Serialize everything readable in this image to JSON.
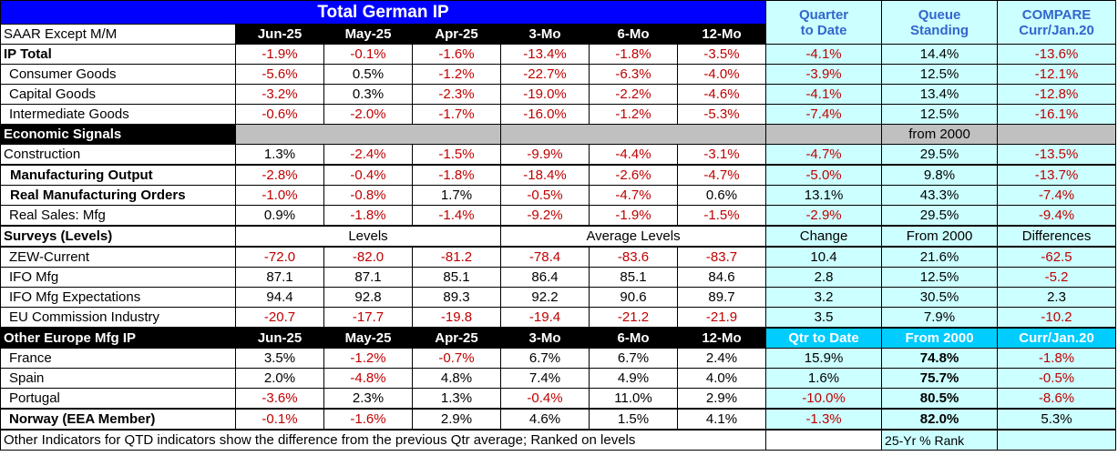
{
  "title": "Total German IP",
  "header": {
    "qtd": [
      "Quarter",
      "to Date"
    ],
    "queue": [
      "Queue",
      "Standing"
    ],
    "compare": [
      "COMPARE",
      "Curr/Jan.20"
    ],
    "saar": "SAAR Except M/M",
    "cols": [
      "Jun-25",
      "May-25",
      "Apr-25",
      "3-Mo",
      "6-Mo",
      "12-Mo"
    ]
  },
  "ip_rows": [
    {
      "label": "IP Total",
      "vals": [
        "-1.9%",
        "-0.1%",
        "-1.6%",
        "-13.4%",
        "-1.8%",
        "-3.5%"
      ],
      "qtd": "-4.1%",
      "queue": "14.4%",
      "compare": "-13.6%"
    },
    {
      "label": "Consumer Goods",
      "vals": [
        "-5.6%",
        "0.5%",
        "-1.2%",
        "-22.7%",
        "-6.3%",
        "-4.0%"
      ],
      "qtd": "-3.9%",
      "queue": "12.5%",
      "compare": "-12.1%"
    },
    {
      "label": "Capital Goods",
      "vals": [
        "-3.2%",
        "0.3%",
        "-2.3%",
        "-19.0%",
        "-2.2%",
        "-4.6%"
      ],
      "qtd": "-4.1%",
      "queue": "13.4%",
      "compare": "-12.8%"
    },
    {
      "label": "Intermediate Goods",
      "vals": [
        "-0.6%",
        "-2.0%",
        "-1.7%",
        "-16.0%",
        "-1.2%",
        "-5.3%"
      ],
      "qtd": "-7.4%",
      "queue": "12.5%",
      "compare": "-16.1%"
    }
  ],
  "econ": {
    "label": "Economic Signals",
    "queue": "from 2000"
  },
  "construction": {
    "label": "Construction",
    "vals": [
      "1.3%",
      "-2.4%",
      "-1.5%",
      "-9.9%",
      "-4.4%",
      "-3.1%"
    ],
    "qtd": "-4.7%",
    "queue": "29.5%",
    "compare": "-13.5%"
  },
  "mfg_rows": [
    {
      "label": "Manufacturing Output",
      "vals": [
        "-2.8%",
        "-0.4%",
        "-1.8%",
        "-18.4%",
        "-2.6%",
        "-4.7%"
      ],
      "qtd": "-5.0%",
      "queue": "9.8%",
      "compare": "-13.7%"
    },
    {
      "label": "Real Manufacturing Orders",
      "vals": [
        "-1.0%",
        "-0.8%",
        "1.7%",
        "-0.5%",
        "-4.7%",
        "0.6%"
      ],
      "qtd": "13.1%",
      "queue": "43.3%",
      "compare": "-7.4%"
    },
    {
      "label": "Real Sales: Mfg",
      "vals": [
        "0.9%",
        "-1.8%",
        "-1.4%",
        "-9.2%",
        "-1.9%",
        "-1.5%"
      ],
      "qtd": "-2.9%",
      "queue": "29.5%",
      "compare": "-9.4%"
    }
  ],
  "surveys": {
    "label": "Surveys (Levels)",
    "levels": "Levels",
    "avg": "Average Levels",
    "change": "Change",
    "from": "From 2000",
    "diff": "Differences"
  },
  "survey_rows": [
    {
      "label": "ZEW-Current",
      "vals": [
        "-72.0",
        "-82.0",
        "-81.2",
        "-78.4",
        "-83.6",
        "-83.7"
      ],
      "qtd": "10.4",
      "queue": "21.6%",
      "compare": "-62.5"
    },
    {
      "label": "IFO Mfg",
      "vals": [
        "87.1",
        "87.1",
        "85.1",
        "86.4",
        "85.1",
        "84.6"
      ],
      "qtd": "2.8",
      "queue": "12.5%",
      "compare": "-5.2"
    },
    {
      "label": "IFO Mfg Expectations",
      "vals": [
        "94.4",
        "92.8",
        "89.3",
        "92.2",
        "90.6",
        "89.7"
      ],
      "qtd": "3.2",
      "queue": "30.5%",
      "compare": "2.3"
    },
    {
      "label": "EU Commission Industry",
      "vals": [
        "-20.7",
        "-17.7",
        "-19.8",
        "-19.4",
        "-21.2",
        "-21.9"
      ],
      "qtd": "3.5",
      "queue": "7.9%",
      "compare": "-10.2"
    }
  ],
  "other": {
    "label": "Other Europe Mfg IP",
    "cols": [
      "Jun-25",
      "May-25",
      "Apr-25",
      "3-Mo",
      "6-Mo",
      "12-Mo"
    ],
    "qtd": "Qtr to Date",
    "from": "From 2000",
    "curr": "Curr/Jan.20"
  },
  "other_rows": [
    {
      "label": "France",
      "vals": [
        "3.5%",
        "-1.2%",
        "-0.7%",
        "6.7%",
        "6.7%",
        "2.4%"
      ],
      "qtd": "15.9%",
      "queue": "74.8%",
      "compare": "-1.8%"
    },
    {
      "label": "Spain",
      "vals": [
        "2.0%",
        "-4.8%",
        "4.8%",
        "7.4%",
        "4.9%",
        "4.0%"
      ],
      "qtd": "1.6%",
      "queue": "75.7%",
      "compare": "-0.5%"
    },
    {
      "label": "Portugal",
      "vals": [
        "-3.6%",
        "2.3%",
        "1.3%",
        "-0.4%",
        "11.0%",
        "2.9%"
      ],
      "qtd": "-10.0%",
      "queue": "80.5%",
      "compare": "-8.6%"
    }
  ],
  "norway": {
    "label": "Norway (EEA Member)",
    "vals": [
      "-0.1%",
      "-1.6%",
      "2.9%",
      "4.6%",
      "1.5%",
      "4.1%"
    ],
    "qtd": "-1.3%",
    "queue": "82.0%",
    "compare": "5.3%"
  },
  "footer": {
    "note": "Other Indicators for QTD indicators show the difference from the previous Qtr average; Ranked on levels",
    "rank": "25-Yr % Rank"
  }
}
